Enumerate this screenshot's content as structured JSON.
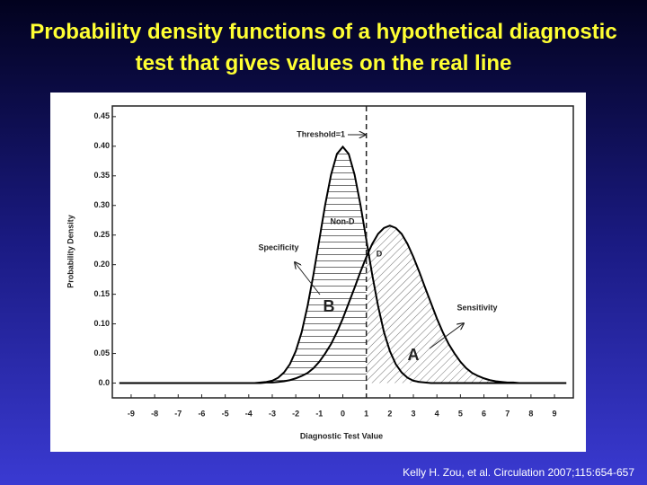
{
  "title": "Probability density functions of a hypothetical diagnostic test that gives values on the real line",
  "citation": "Kelly H. Zou, et al. Circulation 2007;115:654-657",
  "chart_data": {
    "type": "line",
    "x_label": "Diagnostic Test Value",
    "y_label": "Probability Density",
    "x": [
      -9.5,
      -4,
      -3.75,
      -3.5,
      -3.25,
      -3,
      -2.75,
      -2.5,
      -2.25,
      -2,
      -1.75,
      -1.5,
      -1.25,
      -1,
      -0.75,
      -0.5,
      -0.25,
      0,
      0.25,
      0.5,
      0.75,
      1,
      1.25,
      1.5,
      1.75,
      2,
      2.25,
      2.5,
      2.75,
      3,
      3.25,
      3.5,
      3.75,
      4,
      4.25,
      4.5,
      4.75,
      5,
      5.25,
      5.5,
      5.75,
      6,
      6.25,
      6.5,
      6.75,
      7,
      7.25,
      7.5,
      7.75,
      8,
      9.5
    ],
    "series": [
      {
        "name": "Non-D",
        "color": "#000000",
        "values": [
          0,
          0,
          0,
          0.001,
          0.002,
          0.004,
          0.009,
          0.018,
          0.032,
          0.054,
          0.086,
          0.13,
          0.183,
          0.242,
          0.301,
          0.352,
          0.387,
          0.399,
          0.387,
          0.352,
          0.301,
          0.242,
          0.183,
          0.13,
          0.086,
          0.054,
          0.032,
          0.018,
          0.009,
          0.004,
          0.002,
          0.001,
          0,
          0,
          0,
          0,
          0,
          0,
          0,
          0,
          0,
          0,
          0,
          0,
          0,
          0,
          0,
          0,
          0,
          0,
          0
        ]
      },
      {
        "name": "D",
        "color": "#000000",
        "values": [
          0,
          0,
          0,
          0,
          0.001,
          0.001,
          0.002,
          0.003,
          0.005,
          0.008,
          0.012,
          0.017,
          0.025,
          0.036,
          0.05,
          0.066,
          0.086,
          0.109,
          0.135,
          0.161,
          0.188,
          0.213,
          0.235,
          0.252,
          0.262,
          0.266,
          0.262,
          0.252,
          0.235,
          0.213,
          0.188,
          0.161,
          0.135,
          0.109,
          0.086,
          0.066,
          0.05,
          0.036,
          0.025,
          0.017,
          0.012,
          0.008,
          0.005,
          0.003,
          0.002,
          0.001,
          0.001,
          0,
          0,
          0,
          0
        ]
      }
    ],
    "threshold": 1,
    "threshold_label": "Threshold=1",
    "annotations": {
      "specificity": "Specificity",
      "sensitivity": "Sensitivity",
      "region_b": "B",
      "region_a": "A"
    },
    "xlim": [
      -9.8,
      9.8
    ],
    "ylim": [
      -0.025,
      0.468
    ],
    "xticks": [
      -9,
      -8,
      -7,
      -6,
      -5,
      -4,
      -3,
      -2,
      -1,
      0,
      1,
      2,
      3,
      4,
      5,
      6,
      7,
      8,
      9
    ],
    "yticks": [
      {
        "value": 0,
        "label": "0.0"
      },
      0.05,
      {
        "value": 0.1,
        "label": "0.10"
      },
      0.15,
      {
        "value": 0.2,
        "label": "0.20"
      },
      0.25,
      {
        "value": 0.3,
        "label": "0.30"
      },
      0.35,
      {
        "value": 0.4,
        "label": "0.40"
      },
      0.45
    ],
    "grid": false
  }
}
